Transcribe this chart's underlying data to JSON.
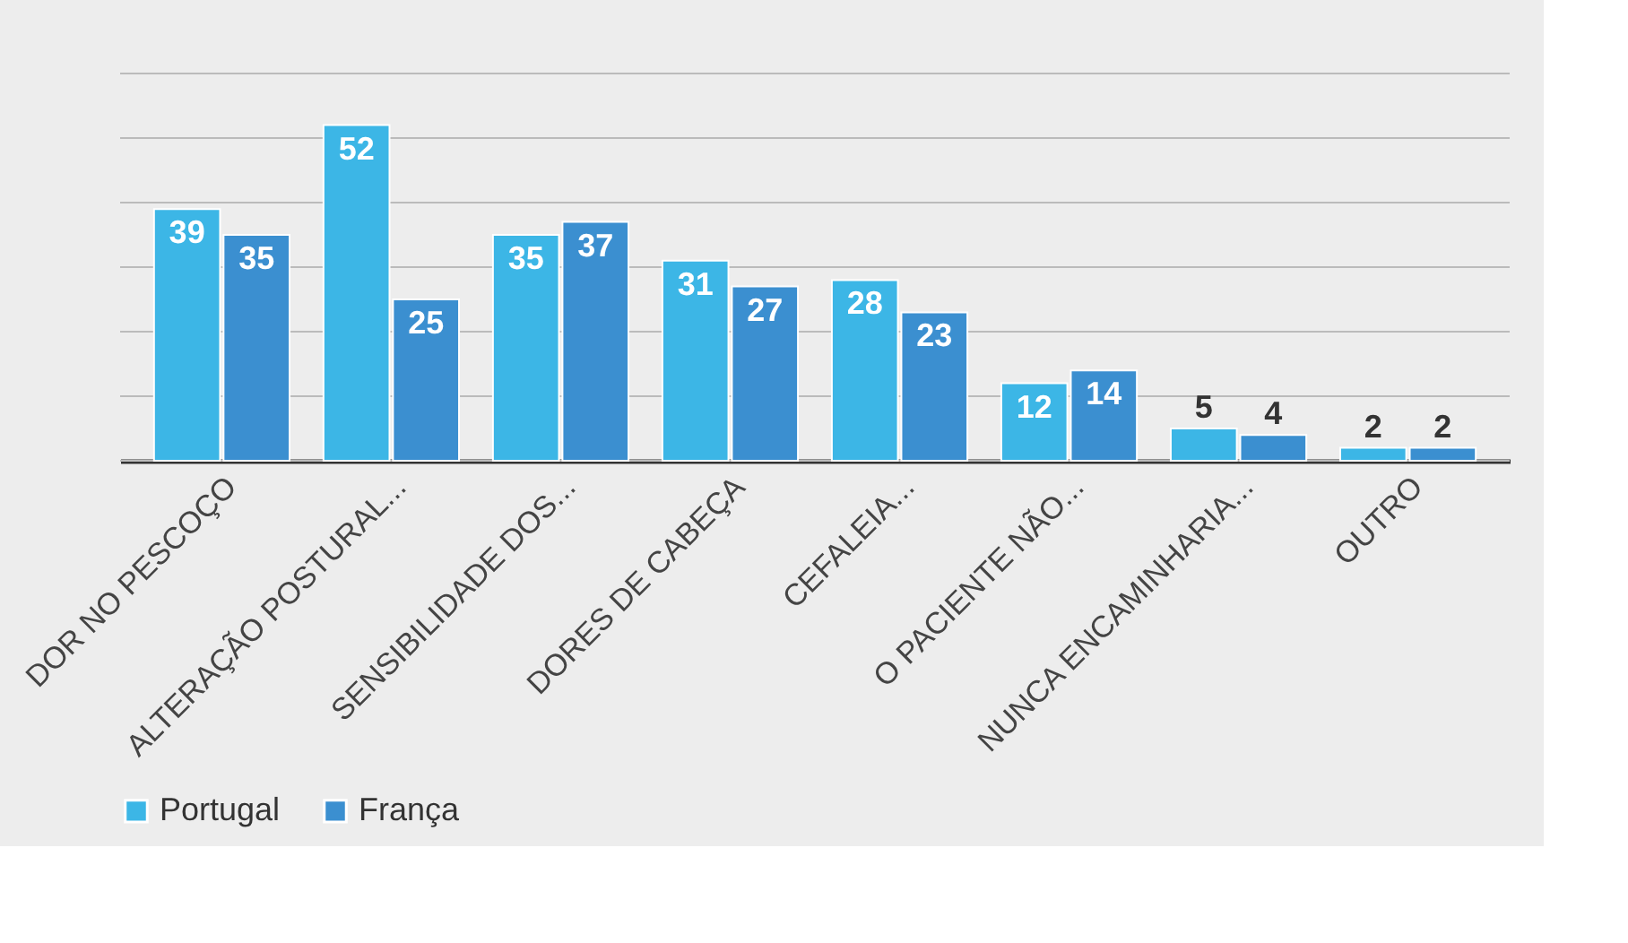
{
  "chart_data": {
    "type": "bar",
    "categories": [
      "DOR NO PESCOÇO",
      "ALTERAÇÃO POSTURAL...",
      "SENSIBILIDADE DOS...",
      "DORES DE CABEÇA",
      "CEFALEIA...",
      "O PACIENTE NÃO...",
      "NUNCA ENCAMINHARIA...",
      "OUTRO"
    ],
    "series": [
      {
        "name": "Portugal",
        "color": "#3cb6e6",
        "values": [
          39,
          52,
          35,
          31,
          28,
          12,
          5,
          2
        ]
      },
      {
        "name": "França",
        "color": "#3b8fd0",
        "values": [
          35,
          25,
          37,
          27,
          23,
          14,
          4,
          2
        ]
      }
    ],
    "ylim": [
      0,
      60
    ],
    "yticks": [
      0,
      10,
      20,
      30,
      40,
      50,
      60
    ],
    "tick_labels": "x",
    "grid": "y",
    "legend": "bottom",
    "data_labels": true
  }
}
